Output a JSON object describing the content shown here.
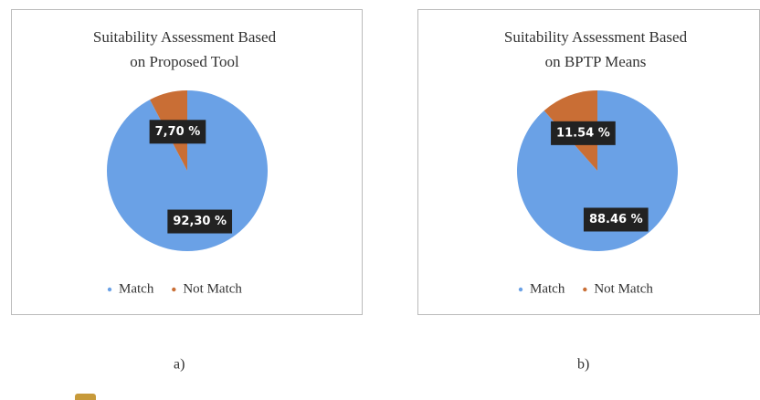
{
  "chart_data": [
    {
      "type": "pie",
      "title": [
        "Suitability  Assessment  Based",
        "on Proposed  Tool"
      ],
      "categories": [
        "Match",
        "Not Match"
      ],
      "values": [
        92.3,
        7.7
      ],
      "value_labels": [
        "92,30 %",
        "7,70 %"
      ],
      "colors": [
        "#6aa1e6",
        "#c96e35"
      ],
      "caption": "a)"
    },
    {
      "type": "pie",
      "title": [
        "Suitability  Assessment  Based",
        "on BPTP Means"
      ],
      "categories": [
        "Match",
        "Not Match"
      ],
      "values": [
        88.46,
        11.54
      ],
      "value_labels": [
        "88.46 %",
        "11.54 %"
      ],
      "colors": [
        "#6aa1e6",
        "#c96e35"
      ],
      "caption": "b)"
    }
  ]
}
